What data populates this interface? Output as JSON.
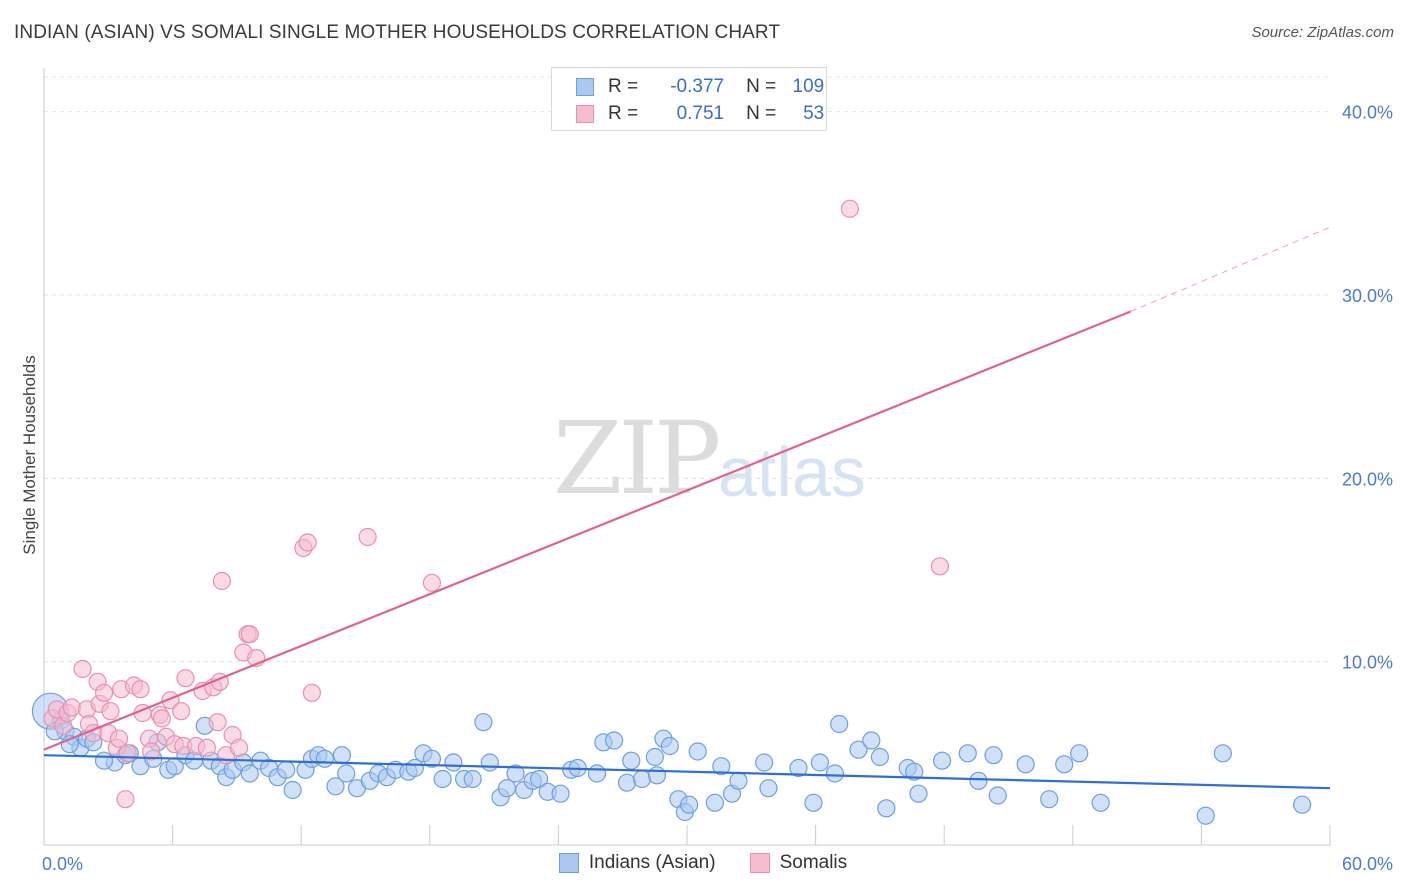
{
  "header": {
    "title": "INDIAN (ASIAN) VS SOMALI SINGLE MOTHER HOUSEHOLDS CORRELATION CHART",
    "source": "Source: ZipAtlas.com"
  },
  "watermark": {
    "zip": "ZIP",
    "atlas": "atlas"
  },
  "legend": {
    "rows": [
      {
        "r_label": "R =",
        "r_value": "-0.377",
        "n_label": "N =",
        "n_value": "109",
        "color": "#aac8f0"
      },
      {
        "r_label": "R =",
        "r_value": "0.751",
        "n_label": "N =",
        "n_value": "53",
        "color": "#f6bcd0"
      }
    ]
  },
  "bottom_legend": {
    "items": [
      {
        "label": "Indians (Asian)",
        "color": "#aac8f0"
      },
      {
        "label": "Somalis",
        "color": "#f6bcd0"
      }
    ]
  },
  "colors": {
    "blue_fill": "#aac8f0",
    "blue_edge": "#6f9fe0",
    "blue_line": "#2f6fcf",
    "pink_fill": "#f6bcd0",
    "pink_edge": "#eb8fb0",
    "pink_line": "#e0628e",
    "tick_text": "#4a7cc9",
    "grid": "#e3e3e3"
  },
  "chart_data": {
    "type": "scatter",
    "title": "INDIAN (ASIAN) VS SOMALI SINGLE MOTHER HOUSEHOLDS CORRELATION CHART",
    "xlabel": "",
    "ylabel": "Single Mother Households",
    "xlim": [
      0,
      60
    ],
    "ylim": [
      0,
      42
    ],
    "x_tick_labels": [
      "0.0%",
      "60.0%"
    ],
    "y_ticks": [
      10,
      20,
      30,
      40
    ],
    "y_tick_labels": [
      "10.0%",
      "20.0%",
      "30.0%",
      "40.0%"
    ],
    "grid": true,
    "legend_position": "top-center",
    "series": [
      {
        "name": "Indians (Asian)",
        "R": -0.377,
        "N": 109,
        "trend": {
          "x0": 0,
          "y0": 4.9,
          "x1": 60,
          "y1": 3.1
        },
        "points": [
          {
            "x": 0.3,
            "y": 7.3,
            "s": "big"
          },
          {
            "x": 0.8,
            "y": 6.8
          },
          {
            "x": 1.0,
            "y": 6.2
          },
          {
            "x": 1.4,
            "y": 5.9
          },
          {
            "x": 1.7,
            "y": 5.3
          },
          {
            "x": 2.0,
            "y": 5.8
          },
          {
            "x": 2.3,
            "y": 5.6
          },
          {
            "x": 3.3,
            "y": 4.5
          },
          {
            "x": 3.8,
            "y": 4.9
          },
          {
            "x": 4.0,
            "y": 5.0
          },
          {
            "x": 4.5,
            "y": 4.3
          },
          {
            "x": 5.1,
            "y": 4.7
          },
          {
            "x": 5.3,
            "y": 5.6
          },
          {
            "x": 5.8,
            "y": 4.1
          },
          {
            "x": 6.1,
            "y": 4.3
          },
          {
            "x": 6.6,
            "y": 4.9
          },
          {
            "x": 7.0,
            "y": 4.6
          },
          {
            "x": 7.5,
            "y": 6.5
          },
          {
            "x": 7.8,
            "y": 4.6
          },
          {
            "x": 8.2,
            "y": 4.3
          },
          {
            "x": 8.5,
            "y": 3.7
          },
          {
            "x": 8.8,
            "y": 4.1
          },
          {
            "x": 9.3,
            "y": 4.5
          },
          {
            "x": 9.6,
            "y": 3.9
          },
          {
            "x": 10.1,
            "y": 4.6
          },
          {
            "x": 10.5,
            "y": 4.2
          },
          {
            "x": 10.9,
            "y": 3.7
          },
          {
            "x": 11.3,
            "y": 4.1
          },
          {
            "x": 11.6,
            "y": 3.0
          },
          {
            "x": 12.2,
            "y": 4.1
          },
          {
            "x": 12.5,
            "y": 4.7
          },
          {
            "x": 12.8,
            "y": 4.9
          },
          {
            "x": 13.1,
            "y": 4.7
          },
          {
            "x": 13.6,
            "y": 3.2
          },
          {
            "x": 13.9,
            "y": 4.9
          },
          {
            "x": 14.1,
            "y": 3.9
          },
          {
            "x": 14.6,
            "y": 3.1
          },
          {
            "x": 15.2,
            "y": 3.5
          },
          {
            "x": 15.6,
            "y": 3.9
          },
          {
            "x": 16.0,
            "y": 3.7
          },
          {
            "x": 16.4,
            "y": 4.1
          },
          {
            "x": 17.0,
            "y": 4.0
          },
          {
            "x": 17.3,
            "y": 4.2
          },
          {
            "x": 17.7,
            "y": 5.0
          },
          {
            "x": 18.1,
            "y": 4.7
          },
          {
            "x": 18.6,
            "y": 3.6
          },
          {
            "x": 19.1,
            "y": 4.5
          },
          {
            "x": 19.6,
            "y": 3.6
          },
          {
            "x": 20.0,
            "y": 3.6
          },
          {
            "x": 20.5,
            "y": 6.7
          },
          {
            "x": 20.8,
            "y": 4.5
          },
          {
            "x": 21.3,
            "y": 2.6
          },
          {
            "x": 21.6,
            "y": 3.1
          },
          {
            "x": 22.0,
            "y": 3.9
          },
          {
            "x": 22.4,
            "y": 3.0
          },
          {
            "x": 22.8,
            "y": 3.5
          },
          {
            "x": 23.1,
            "y": 3.6
          },
          {
            "x": 23.5,
            "y": 2.9
          },
          {
            "x": 24.1,
            "y": 2.8
          },
          {
            "x": 24.6,
            "y": 4.1
          },
          {
            "x": 24.9,
            "y": 4.2
          },
          {
            "x": 25.8,
            "y": 3.9
          },
          {
            "x": 26.1,
            "y": 5.6
          },
          {
            "x": 26.6,
            "y": 5.7
          },
          {
            "x": 27.2,
            "y": 3.4
          },
          {
            "x": 27.4,
            "y": 4.6
          },
          {
            "x": 27.9,
            "y": 3.6
          },
          {
            "x": 28.5,
            "y": 4.8
          },
          {
            "x": 28.6,
            "y": 3.8
          },
          {
            "x": 28.9,
            "y": 5.8
          },
          {
            "x": 29.2,
            "y": 5.4
          },
          {
            "x": 29.6,
            "y": 2.5
          },
          {
            "x": 29.9,
            "y": 1.8
          },
          {
            "x": 30.1,
            "y": 2.2
          },
          {
            "x": 30.5,
            "y": 5.1
          },
          {
            "x": 31.3,
            "y": 2.3
          },
          {
            "x": 31.6,
            "y": 4.3
          },
          {
            "x": 32.1,
            "y": 2.8
          },
          {
            "x": 32.4,
            "y": 3.5
          },
          {
            "x": 33.6,
            "y": 4.5
          },
          {
            "x": 33.8,
            "y": 3.1
          },
          {
            "x": 35.2,
            "y": 4.2
          },
          {
            "x": 35.9,
            "y": 2.3
          },
          {
            "x": 36.2,
            "y": 4.5
          },
          {
            "x": 36.9,
            "y": 3.9
          },
          {
            "x": 37.1,
            "y": 6.6
          },
          {
            "x": 38.0,
            "y": 5.2
          },
          {
            "x": 38.6,
            "y": 5.7
          },
          {
            "x": 39.0,
            "y": 4.8
          },
          {
            "x": 39.3,
            "y": 2.0
          },
          {
            "x": 40.3,
            "y": 4.2
          },
          {
            "x": 40.6,
            "y": 4.0
          },
          {
            "x": 40.8,
            "y": 2.8
          },
          {
            "x": 41.9,
            "y": 4.6
          },
          {
            "x": 43.1,
            "y": 5.0
          },
          {
            "x": 43.6,
            "y": 3.5
          },
          {
            "x": 44.3,
            "y": 4.9
          },
          {
            "x": 44.5,
            "y": 2.7
          },
          {
            "x": 45.8,
            "y": 4.4
          },
          {
            "x": 46.9,
            "y": 2.5
          },
          {
            "x": 47.6,
            "y": 4.4
          },
          {
            "x": 48.3,
            "y": 5.0
          },
          {
            "x": 49.3,
            "y": 2.3
          },
          {
            "x": 54.2,
            "y": 1.6
          },
          {
            "x": 55.0,
            "y": 5.0
          },
          {
            "x": 58.7,
            "y": 2.2
          },
          {
            "x": 0.5,
            "y": 6.2
          },
          {
            "x": 1.2,
            "y": 5.5
          },
          {
            "x": 2.8,
            "y": 4.6
          }
        ]
      },
      {
        "name": "Somalis",
        "R": 0.751,
        "N": 53,
        "trend": {
          "x0": 0,
          "y0": 5.2,
          "x1": 50.7,
          "y1": 29.1
        },
        "trend_dashed": {
          "x0": 50.7,
          "y0": 29.1,
          "x1": 60,
          "y1": 33.7
        },
        "points": [
          {
            "x": 0.4,
            "y": 6.9
          },
          {
            "x": 0.6,
            "y": 7.4
          },
          {
            "x": 0.9,
            "y": 6.5
          },
          {
            "x": 1.1,
            "y": 7.2
          },
          {
            "x": 1.3,
            "y": 7.5
          },
          {
            "x": 1.8,
            "y": 9.6
          },
          {
            "x": 2.0,
            "y": 7.4
          },
          {
            "x": 2.1,
            "y": 6.6
          },
          {
            "x": 2.3,
            "y": 6.1
          },
          {
            "x": 2.5,
            "y": 8.9
          },
          {
            "x": 2.6,
            "y": 7.7
          },
          {
            "x": 2.8,
            "y": 8.3
          },
          {
            "x": 3.0,
            "y": 6.1
          },
          {
            "x": 3.1,
            "y": 7.3
          },
          {
            "x": 3.4,
            "y": 5.3
          },
          {
            "x": 3.5,
            "y": 5.8
          },
          {
            "x": 3.6,
            "y": 8.5
          },
          {
            "x": 3.8,
            "y": 2.5
          },
          {
            "x": 3.9,
            "y": 5.0
          },
          {
            "x": 4.2,
            "y": 8.7
          },
          {
            "x": 4.5,
            "y": 8.5
          },
          {
            "x": 4.6,
            "y": 7.2
          },
          {
            "x": 4.9,
            "y": 5.8
          },
          {
            "x": 5.0,
            "y": 5.1
          },
          {
            "x": 5.4,
            "y": 7.1
          },
          {
            "x": 5.5,
            "y": 6.9
          },
          {
            "x": 5.7,
            "y": 5.9
          },
          {
            "x": 5.9,
            "y": 7.9
          },
          {
            "x": 6.1,
            "y": 5.5
          },
          {
            "x": 6.4,
            "y": 7.3
          },
          {
            "x": 6.5,
            "y": 5.4
          },
          {
            "x": 6.6,
            "y": 9.1
          },
          {
            "x": 7.1,
            "y": 5.4
          },
          {
            "x": 7.4,
            "y": 8.4
          },
          {
            "x": 7.6,
            "y": 5.3
          },
          {
            "x": 7.9,
            "y": 8.6
          },
          {
            "x": 8.1,
            "y": 6.7
          },
          {
            "x": 8.2,
            "y": 8.9
          },
          {
            "x": 8.3,
            "y": 14.4
          },
          {
            "x": 8.5,
            "y": 4.9
          },
          {
            "x": 8.8,
            "y": 6.0
          },
          {
            "x": 9.1,
            "y": 5.3
          },
          {
            "x": 9.3,
            "y": 10.5
          },
          {
            "x": 9.5,
            "y": 11.5
          },
          {
            "x": 9.6,
            "y": 11.5
          },
          {
            "x": 9.9,
            "y": 10.2
          },
          {
            "x": 12.1,
            "y": 16.2
          },
          {
            "x": 12.3,
            "y": 16.5
          },
          {
            "x": 12.5,
            "y": 8.3
          },
          {
            "x": 15.1,
            "y": 16.8
          },
          {
            "x": 18.1,
            "y": 14.3
          },
          {
            "x": 37.6,
            "y": 34.7
          },
          {
            "x": 41.8,
            "y": 15.2
          }
        ]
      }
    ]
  }
}
